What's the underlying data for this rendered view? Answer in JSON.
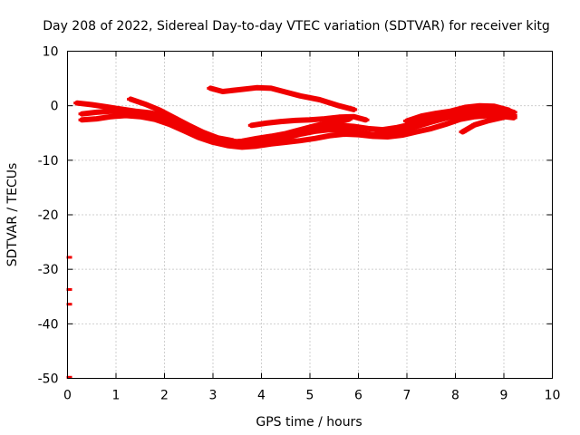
{
  "chart_data": {
    "type": "line",
    "title": "Day 208 of 2022, Sidereal Day-to-day VTEC variation (SDTVAR) for receiver kitg",
    "xlabel": "GPS time / hours",
    "ylabel": "SDTVAR / TECUs",
    "xlim": [
      0,
      10
    ],
    "ylim": [
      -50,
      10
    ],
    "xticks": [
      0,
      1,
      2,
      3,
      4,
      5,
      6,
      7,
      8,
      9,
      10
    ],
    "yticks": [
      10,
      0,
      -10,
      -20,
      -30,
      -40,
      -50
    ],
    "grid": true,
    "legend": "none",
    "color": "#f00000",
    "series": [
      {
        "values": [
          [
            0.2,
            0.5
          ],
          [
            0.5,
            0.2
          ],
          [
            0.8,
            -0.2
          ],
          [
            1.1,
            -0.6
          ],
          [
            1.4,
            -1.0
          ],
          [
            1.7,
            -1.3
          ],
          [
            2.0,
            -1.8
          ],
          [
            2.3,
            -3.2
          ],
          [
            2.6,
            -4.5
          ],
          [
            2.9,
            -5.8
          ],
          [
            3.2,
            -6.3
          ],
          [
            3.5,
            -6.6
          ],
          [
            3.8,
            -6.4
          ],
          [
            4.1,
            -5.9
          ],
          [
            4.4,
            -5.4
          ],
          [
            4.7,
            -4.8
          ],
          [
            5.0,
            -4.3
          ],
          [
            5.3,
            -3.9
          ],
          [
            5.6,
            -3.6
          ],
          [
            5.9,
            -3.8
          ],
          [
            6.2,
            -4.2
          ],
          [
            6.5,
            -4.4
          ],
          [
            6.8,
            -4.0
          ],
          [
            7.1,
            -3.4
          ],
          [
            7.4,
            -2.6
          ],
          [
            7.7,
            -1.8
          ],
          [
            8.0,
            -1.1
          ],
          [
            8.3,
            -0.7
          ],
          [
            8.6,
            -0.6
          ],
          [
            8.9,
            -0.8
          ],
          [
            9.2,
            -1.2
          ]
        ]
      },
      {
        "values": [
          [
            0.3,
            -1.5
          ],
          [
            0.6,
            -1.2
          ],
          [
            0.9,
            -1.0
          ],
          [
            1.2,
            -1.1
          ],
          [
            1.5,
            -1.4
          ],
          [
            1.8,
            -1.9
          ],
          [
            2.1,
            -2.8
          ],
          [
            2.4,
            -4.0
          ],
          [
            2.7,
            -5.2
          ],
          [
            3.0,
            -6.1
          ],
          [
            3.3,
            -6.7
          ],
          [
            3.6,
            -7.0
          ],
          [
            3.9,
            -6.9
          ],
          [
            4.2,
            -6.5
          ],
          [
            4.5,
            -5.9
          ],
          [
            4.8,
            -5.2
          ],
          [
            5.1,
            -4.7
          ],
          [
            5.4,
            -4.4
          ],
          [
            5.7,
            -4.5
          ],
          [
            6.0,
            -4.9
          ],
          [
            6.3,
            -5.3
          ],
          [
            6.6,
            -5.2
          ],
          [
            6.9,
            -4.6
          ],
          [
            7.2,
            -3.8
          ],
          [
            7.5,
            -3.0
          ],
          [
            7.8,
            -2.3
          ],
          [
            8.1,
            -1.7
          ],
          [
            8.4,
            -1.3
          ],
          [
            8.7,
            -1.2
          ],
          [
            9.0,
            -1.5
          ],
          [
            9.2,
            -1.8
          ]
        ]
      },
      {
        "values": [
          [
            0.3,
            -2.6
          ],
          [
            0.6,
            -2.4
          ],
          [
            0.9,
            -2.0
          ],
          [
            1.2,
            -1.8
          ],
          [
            1.5,
            -2.0
          ],
          [
            1.8,
            -2.5
          ],
          [
            2.1,
            -3.4
          ],
          [
            2.4,
            -4.6
          ],
          [
            2.7,
            -5.8
          ],
          [
            3.0,
            -6.7
          ],
          [
            3.3,
            -7.3
          ],
          [
            3.6,
            -7.6
          ],
          [
            3.9,
            -7.4
          ],
          [
            4.2,
            -7.0
          ],
          [
            4.5,
            -6.7
          ],
          [
            4.8,
            -6.4
          ],
          [
            5.1,
            -6.0
          ],
          [
            5.4,
            -5.5
          ],
          [
            5.7,
            -5.2
          ],
          [
            6.0,
            -5.3
          ],
          [
            6.3,
            -5.6
          ],
          [
            6.6,
            -5.7
          ],
          [
            6.9,
            -5.4
          ],
          [
            7.2,
            -4.8
          ],
          [
            7.5,
            -4.2
          ],
          [
            7.8,
            -3.4
          ],
          [
            8.1,
            -2.5
          ],
          [
            8.4,
            -2.0
          ],
          [
            8.7,
            -1.8
          ],
          [
            9.0,
            -2.0
          ],
          [
            9.2,
            -2.2
          ]
        ]
      },
      {
        "values": [
          [
            1.3,
            1.2
          ],
          [
            1.6,
            0.3
          ],
          [
            1.9,
            -0.8
          ],
          [
            2.2,
            -2.2
          ],
          [
            2.5,
            -3.6
          ],
          [
            2.8,
            -4.9
          ],
          [
            3.1,
            -5.9
          ],
          [
            3.4,
            -6.4
          ]
        ]
      },
      {
        "values": [
          [
            2.95,
            3.2
          ],
          [
            3.2,
            2.6
          ],
          [
            3.6,
            3.0
          ],
          [
            3.9,
            3.3
          ],
          [
            4.2,
            3.2
          ],
          [
            4.5,
            2.5
          ],
          [
            4.8,
            1.8
          ],
          [
            5.2,
            1.1
          ],
          [
            5.6,
            0.0
          ],
          [
            5.9,
            -0.7
          ]
        ]
      },
      {
        "values": [
          [
            3.8,
            -3.6
          ],
          [
            4.1,
            -3.2
          ],
          [
            4.4,
            -2.9
          ],
          [
            4.7,
            -2.7
          ],
          [
            5.0,
            -2.6
          ],
          [
            5.3,
            -2.4
          ],
          [
            5.6,
            -2.1
          ],
          [
            5.9,
            -2.0
          ],
          [
            6.15,
            -2.6
          ]
        ]
      },
      {
        "values": [
          [
            3.3,
            -6.8
          ],
          [
            3.6,
            -6.5
          ],
          [
            3.9,
            -6.0
          ],
          [
            4.2,
            -5.6
          ],
          [
            4.5,
            -5.1
          ],
          [
            4.8,
            -4.4
          ],
          [
            5.1,
            -3.7
          ],
          [
            5.4,
            -3.1
          ],
          [
            5.7,
            -2.7
          ],
          [
            5.8,
            -2.5
          ]
        ]
      },
      {
        "values": [
          [
            7.0,
            -2.8
          ],
          [
            7.3,
            -1.9
          ],
          [
            7.6,
            -1.4
          ],
          [
            7.9,
            -1.0
          ],
          [
            8.2,
            -0.3
          ],
          [
            8.5,
            0.0
          ],
          [
            8.8,
            -0.1
          ],
          [
            9.1,
            -0.8
          ]
        ]
      },
      {
        "values": [
          [
            8.15,
            -4.8
          ],
          [
            8.4,
            -3.5
          ],
          [
            8.7,
            -2.7
          ],
          [
            9.0,
            -2.1
          ]
        ]
      },
      {
        "values": [
          [
            0.0,
            -27.8
          ],
          [
            0.0,
            -33.7
          ],
          [
            0.0,
            -36.4
          ],
          [
            0.0,
            -49.8
          ]
        ]
      }
    ]
  }
}
